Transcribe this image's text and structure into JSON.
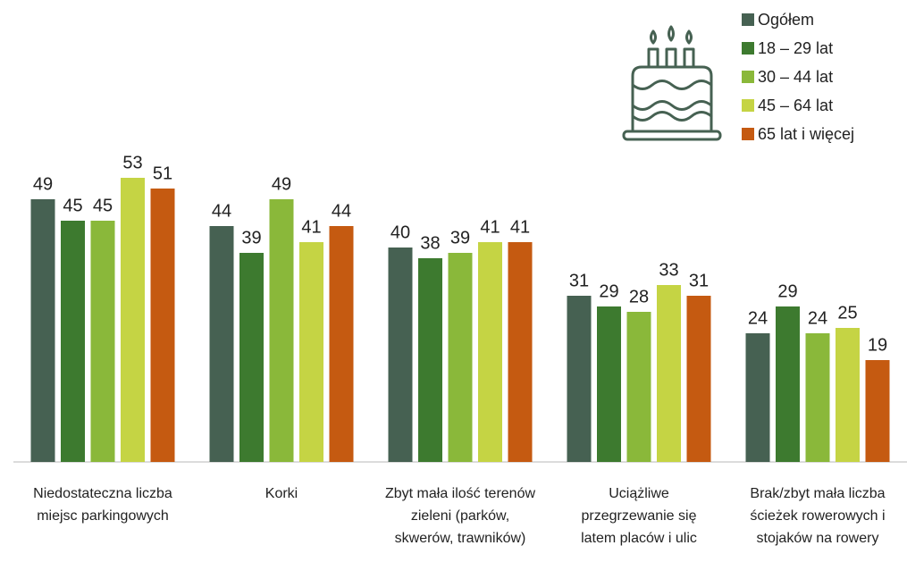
{
  "chart_data": {
    "type": "bar",
    "categories": [
      "Niedostateczna liczba miejsc parkingowych",
      "Korki",
      "Zbyt mała ilość terenów zieleni (parków, skwerów, trawników)",
      "Uciążliwe przegrzewanie się latem placów i ulic",
      "Brak/zbyt mała liczba ścieżek rowerowych i stojaków na rowery"
    ],
    "series": [
      {
        "name": "Ogółem",
        "color": "#466152",
        "values": [
          49,
          44,
          40,
          31,
          24
        ]
      },
      {
        "name": "18 – 29 lat",
        "color": "#3d7a2f",
        "values": [
          45,
          39,
          38,
          29,
          29
        ]
      },
      {
        "name": "30 – 44 lat",
        "color": "#8ab83a",
        "values": [
          45,
          49,
          39,
          28,
          24
        ]
      },
      {
        "name": "45 – 64 lat",
        "color": "#c5d444",
        "values": [
          53,
          41,
          41,
          33,
          25
        ]
      },
      {
        "name": "65 lat i więcej",
        "color": "#c55a11",
        "values": [
          51,
          44,
          41,
          31,
          19
        ]
      }
    ],
    "legend": "top-right"
  }
}
